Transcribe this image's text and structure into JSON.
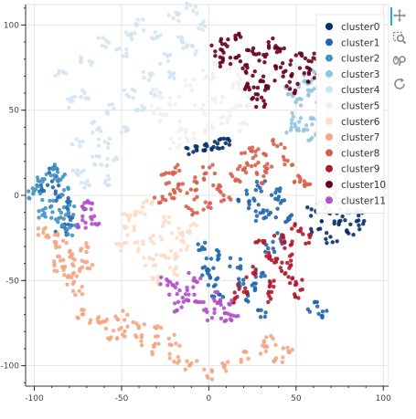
{
  "chart_data": {
    "type": "scatter",
    "title": "",
    "xlabel": "",
    "ylabel": "",
    "xlim": [
      -105,
      103
    ],
    "ylim": [
      -112,
      112
    ],
    "x_ticks": [
      -100,
      -50,
      0,
      50,
      100
    ],
    "y_ticks": [
      -100,
      -50,
      0,
      50,
      100
    ],
    "x_tick_labels": [
      "-100",
      "-50",
      "0",
      "50",
      "100"
    ],
    "y_tick_labels": [
      "-100",
      "-50",
      "0",
      "50",
      "100"
    ],
    "grid": true,
    "legend_position": "top-right",
    "series": [
      {
        "name": "cluster0",
        "color": "#08306b",
        "points": [
          [
            60,
            -10
          ],
          [
            65,
            -5
          ],
          [
            70,
            0
          ],
          [
            75,
            -15
          ],
          [
            80,
            -20
          ],
          [
            85,
            -10
          ],
          [
            90,
            -5
          ],
          [
            70,
            -25
          ],
          [
            62,
            -18
          ],
          [
            78,
            -8
          ],
          [
            88,
            -18
          ],
          [
            72,
            -12
          ],
          [
            -5,
            27
          ],
          [
            0,
            28
          ],
          [
            5,
            30
          ],
          [
            10,
            33
          ],
          [
            -10,
            26
          ]
        ]
      },
      {
        "name": "cluster1",
        "color": "#2166ac",
        "points": [
          [
            20,
            0
          ],
          [
            25,
            -5
          ],
          [
            30,
            5
          ],
          [
            35,
            -10
          ],
          [
            40,
            -5
          ],
          [
            45,
            -15
          ],
          [
            28,
            -12
          ],
          [
            38,
            2
          ],
          [
            -5,
            -30
          ],
          [
            0,
            -40
          ],
          [
            2,
            -50
          ],
          [
            5,
            -60
          ],
          [
            -2,
            -45
          ],
          [
            3,
            -35
          ],
          [
            15,
            -40
          ],
          [
            20,
            -50
          ],
          [
            25,
            -55
          ],
          [
            30,
            -45
          ],
          [
            35,
            -30
          ],
          [
            40,
            -25
          ],
          [
            30,
            -70
          ],
          [
            20,
            -60
          ],
          [
            60,
            -65
          ],
          [
            65,
            -70
          ],
          [
            -90,
            15
          ],
          [
            -95,
            5
          ],
          [
            -85,
            0
          ],
          [
            -80,
            -15
          ],
          [
            -85,
            -20
          ],
          [
            -88,
            8
          ],
          [
            -82,
            -5
          ]
        ]
      },
      {
        "name": "cluster2",
        "color": "#4393c3",
        "points": [
          [
            -90,
            15
          ],
          [
            -95,
            10
          ],
          [
            -98,
            5
          ],
          [
            -100,
            0
          ],
          [
            -92,
            -5
          ],
          [
            -88,
            -10
          ],
          [
            -85,
            -15
          ],
          [
            -95,
            -12
          ],
          [
            -86,
            12
          ],
          [
            -80,
            -8
          ],
          [
            -78,
            -20
          ],
          [
            -82,
            2
          ]
        ]
      },
      {
        "name": "cluster3",
        "color": "#92c5de",
        "points": [
          [
            45,
            60
          ],
          [
            50,
            55
          ],
          [
            55,
            65
          ],
          [
            60,
            60
          ],
          [
            65,
            55
          ],
          [
            50,
            45
          ],
          [
            55,
            40
          ],
          [
            60,
            35
          ],
          [
            70,
            50
          ],
          [
            75,
            60
          ],
          [
            48,
            38
          ],
          [
            62,
            45
          ],
          [
            68,
            40
          ],
          [
            58,
            70
          ],
          [
            72,
            68
          ]
        ]
      },
      {
        "name": "cluster4",
        "color": "#d1e5f0",
        "points": [
          [
            -70,
            80
          ],
          [
            -60,
            90
          ],
          [
            -50,
            85
          ],
          [
            -40,
            100
          ],
          [
            -30,
            95
          ],
          [
            -20,
            105
          ],
          [
            -10,
            110
          ],
          [
            -25,
            80
          ],
          [
            -35,
            70
          ],
          [
            -45,
            60
          ],
          [
            -55,
            50
          ],
          [
            -65,
            40
          ],
          [
            -75,
            30
          ],
          [
            -80,
            55
          ],
          [
            -85,
            70
          ],
          [
            -70,
            60
          ],
          [
            -60,
            30
          ],
          [
            -50,
            40
          ],
          [
            -40,
            50
          ],
          [
            -30,
            60
          ],
          [
            -20,
            70
          ],
          [
            -15,
            90
          ],
          [
            -75,
            15
          ],
          [
            -65,
            20
          ],
          [
            -70,
            5
          ],
          [
            -60,
            8
          ],
          [
            -55,
            20
          ],
          [
            -45,
            95
          ],
          [
            -10,
            85
          ],
          [
            -5,
            100
          ]
        ]
      },
      {
        "name": "cluster5",
        "color": "#f0f0f0",
        "points": [
          [
            -30,
            60
          ],
          [
            -20,
            55
          ],
          [
            -10,
            65
          ],
          [
            0,
            70
          ],
          [
            10,
            75
          ],
          [
            20,
            70
          ],
          [
            -25,
            45
          ],
          [
            -15,
            40
          ],
          [
            -5,
            50
          ],
          [
            5,
            55
          ],
          [
            15,
            50
          ],
          [
            -20,
            30
          ],
          [
            -10,
            35
          ],
          [
            0,
            40
          ],
          [
            10,
            45
          ],
          [
            20,
            40
          ],
          [
            -30,
            50
          ],
          [
            25,
            55
          ],
          [
            15,
            65
          ],
          [
            5,
            80
          ]
        ]
      },
      {
        "name": "cluster6",
        "color": "#fddbc7",
        "points": [
          [
            -40,
            -10
          ],
          [
            -45,
            -20
          ],
          [
            -50,
            -30
          ],
          [
            -35,
            -40
          ],
          [
            -30,
            -25
          ],
          [
            -25,
            -15
          ],
          [
            -20,
            -35
          ],
          [
            -15,
            -30
          ],
          [
            -10,
            -20
          ],
          [
            -30,
            -50
          ],
          [
            -20,
            -45
          ],
          [
            -40,
            -30
          ],
          [
            -35,
            -5
          ],
          [
            -28,
            -38
          ],
          [
            -48,
            -12
          ],
          [
            -18,
            -22
          ]
        ]
      },
      {
        "name": "cluster7",
        "color": "#f4a582",
        "points": [
          [
            -95,
            -20
          ],
          [
            -90,
            -25
          ],
          [
            -85,
            -30
          ],
          [
            -80,
            -40
          ],
          [
            -75,
            -45
          ],
          [
            -70,
            -40
          ],
          [
            -80,
            -50
          ],
          [
            -75,
            -55
          ],
          [
            -85,
            -45
          ],
          [
            -70,
            -30
          ],
          [
            -78,
            -35
          ],
          [
            -88,
            -38
          ],
          [
            -75,
            -70
          ],
          [
            -60,
            -75
          ],
          [
            -50,
            -80
          ],
          [
            -40,
            -85
          ],
          [
            -30,
            -90
          ],
          [
            -20,
            -95
          ],
          [
            -10,
            -100
          ],
          [
            0,
            -105
          ],
          [
            10,
            -100
          ],
          [
            20,
            -95
          ],
          [
            30,
            -90
          ],
          [
            40,
            -95
          ],
          [
            -50,
            -70
          ],
          [
            -40,
            -75
          ],
          [
            -30,
            -80
          ],
          [
            -20,
            -85
          ],
          [
            -65,
            -72
          ],
          [
            -55,
            -82
          ],
          [
            35,
            -85
          ],
          [
            45,
            -92
          ]
        ]
      },
      {
        "name": "cluster8",
        "color": "#d6604d",
        "points": [
          [
            -25,
            10
          ],
          [
            -20,
            15
          ],
          [
            -15,
            5
          ],
          [
            -10,
            0
          ],
          [
            -5,
            10
          ],
          [
            0,
            15
          ],
          [
            5,
            5
          ],
          [
            10,
            0
          ],
          [
            15,
            10
          ],
          [
            20,
            15
          ],
          [
            25,
            20
          ],
          [
            -20,
            0
          ],
          [
            -10,
            -10
          ],
          [
            0,
            -5
          ],
          [
            30,
            25
          ],
          [
            40,
            30
          ],
          [
            35,
            15
          ],
          [
            45,
            20
          ],
          [
            50,
            10
          ],
          [
            55,
            5
          ],
          [
            30,
            10
          ],
          [
            22,
            25
          ],
          [
            -28,
            -2
          ]
        ]
      },
      {
        "name": "cluster9",
        "color": "#b2182b",
        "points": [
          [
            30,
            -30
          ],
          [
            35,
            -35
          ],
          [
            40,
            -25
          ],
          [
            45,
            -30
          ],
          [
            50,
            -20
          ],
          [
            55,
            -25
          ],
          [
            40,
            -40
          ],
          [
            45,
            -45
          ],
          [
            50,
            -50
          ],
          [
            20,
            -55
          ],
          [
            15,
            -60
          ],
          [
            25,
            -45
          ],
          [
            35,
            -60
          ],
          [
            48,
            -38
          ],
          [
            52,
            -58
          ],
          [
            38,
            -52
          ]
        ]
      },
      {
        "name": "cluster10",
        "color": "#67001f",
        "points": [
          [
            5,
            85
          ],
          [
            10,
            90
          ],
          [
            15,
            80
          ],
          [
            20,
            75
          ],
          [
            25,
            85
          ],
          [
            30,
            80
          ],
          [
            35,
            90
          ],
          [
            40,
            75
          ],
          [
            45,
            70
          ],
          [
            50,
            80
          ],
          [
            55,
            75
          ],
          [
            60,
            70
          ],
          [
            20,
            65
          ],
          [
            25,
            60
          ],
          [
            30,
            55
          ],
          [
            35,
            65
          ],
          [
            15,
            95
          ],
          [
            40,
            85
          ],
          [
            8,
            78
          ],
          [
            28,
            70
          ],
          [
            48,
            62
          ],
          [
            58,
            82
          ]
        ]
      },
      {
        "name": "cluster11",
        "color": "#b24fc9",
        "points": [
          [
            -70,
            -10
          ],
          [
            -65,
            -15
          ],
          [
            -72,
            -18
          ],
          [
            -68,
            -5
          ],
          [
            -20,
            -55
          ],
          [
            -15,
            -60
          ],
          [
            -10,
            -55
          ],
          [
            -5,
            -65
          ],
          [
            0,
            -70
          ],
          [
            5,
            -60
          ],
          [
            10,
            -65
          ],
          [
            15,
            -70
          ],
          [
            -25,
            -50
          ],
          [
            -8,
            -48
          ],
          [
            8,
            -72
          ],
          [
            -18,
            -65
          ]
        ]
      }
    ]
  },
  "toolbar": {
    "tools": [
      {
        "name": "pan-tool",
        "icon": "pan-icon"
      },
      {
        "name": "wheel-zoom-tool",
        "icon": "zoom-icon"
      },
      {
        "name": "reset-tool",
        "icon": "reset-icon"
      },
      {
        "name": "refresh-tool",
        "icon": "refresh-icon"
      }
    ]
  }
}
